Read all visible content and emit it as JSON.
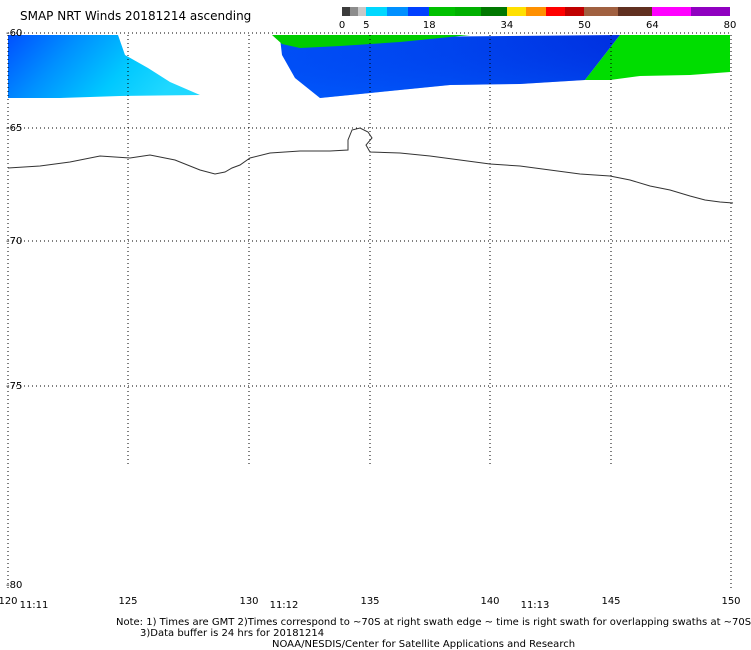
{
  "title": "SMAP NRT Winds 20181214 ascending",
  "colorbar": {
    "labels": [
      {
        "value": "0",
        "pos": 0
      },
      {
        "value": "5",
        "pos": 5
      },
      {
        "value": "18",
        "pos": 18
      },
      {
        "value": "34",
        "pos": 34
      },
      {
        "value": "50",
        "pos": 50
      },
      {
        "value": "64",
        "pos": 64
      },
      {
        "value": "80",
        "pos": 80
      }
    ],
    "range": [
      0,
      80
    ],
    "segments": [
      {
        "from": 0,
        "to": 5,
        "colors": [
          "#3c3c3c",
          "#8c8c8c",
          "#c8c8c8"
        ]
      },
      {
        "from": 5,
        "to": 18,
        "colors": [
          "#00d8ff",
          "#0090ff",
          "#0040ff"
        ]
      },
      {
        "from": 18,
        "to": 34,
        "colors": [
          "#00c000",
          "#00b000",
          "#007800"
        ]
      },
      {
        "from": 34,
        "to": 50,
        "colors": [
          "#ffe000",
          "#ff9000",
          "#ff0000",
          "#c00000"
        ]
      },
      {
        "from": 50,
        "to": 64,
        "colors": [
          "#a06040",
          "#603020"
        ]
      },
      {
        "from": 64,
        "to": 80,
        "colors": [
          "#ff00ff",
          "#9000c0"
        ]
      }
    ]
  },
  "map": {
    "lat_labels": [
      "-60",
      "-65",
      "-70",
      "-75",
      "-80"
    ],
    "lon_labels": [
      "120",
      "125",
      "130",
      "135",
      "140",
      "145",
      "150"
    ],
    "time_labels": [
      "11:11",
      "11:12",
      "11:13"
    ]
  },
  "notes": {
    "line1": "Note: 1) Times are GMT 2)Times correspond to ~70S at right swath edge ~ time is right swath for overlapping swaths at ~70S",
    "line2": "3)Data buffer is 24 hrs for 20181214",
    "line3": "NOAA/NESDIS/Center for Satellite Applications and Research"
  }
}
